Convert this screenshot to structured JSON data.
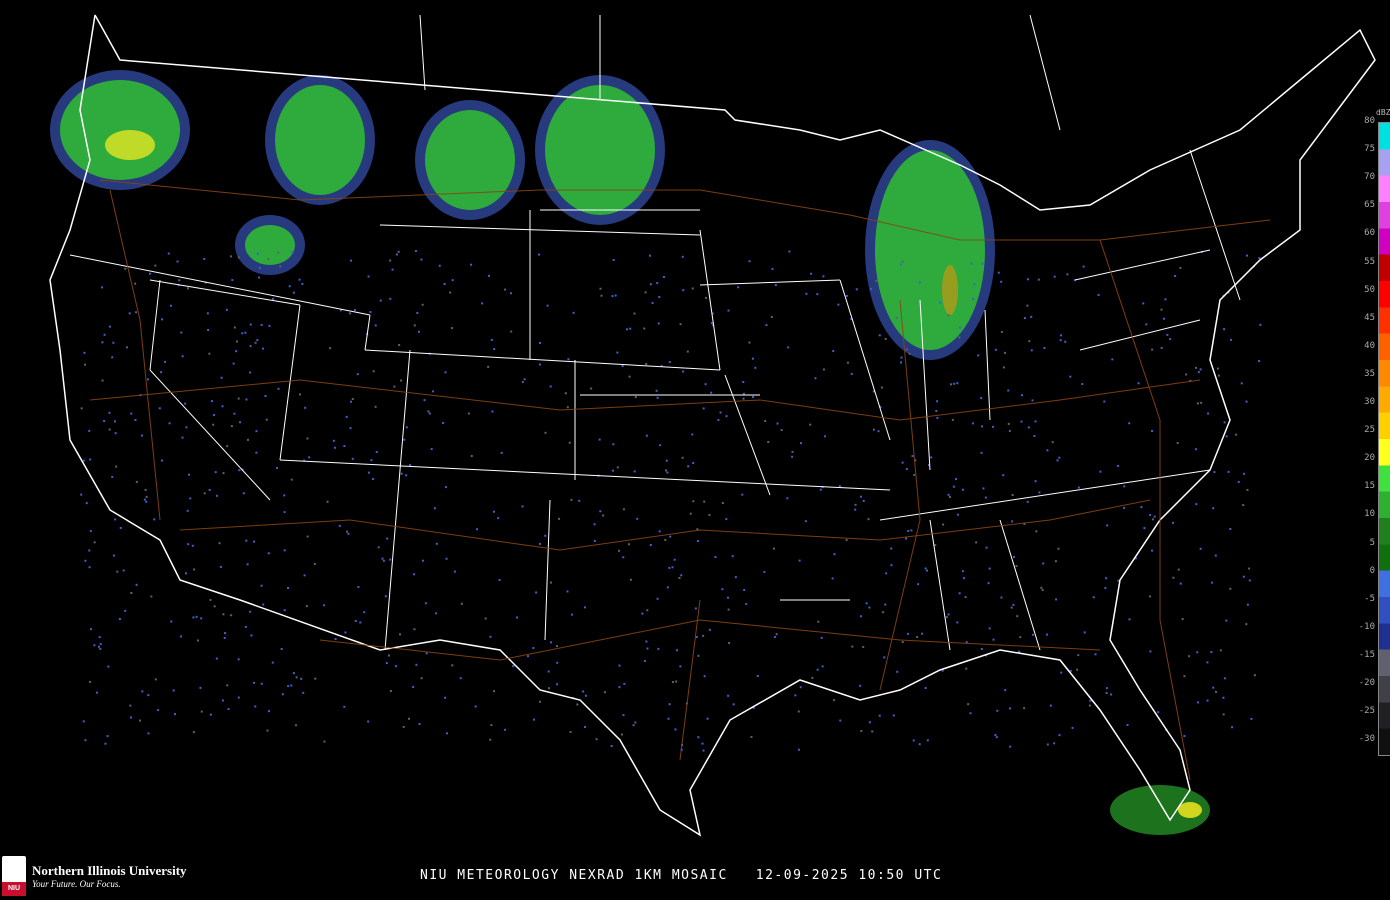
{
  "title": "NIU METEOROLOGY NEXRAD 1KM MOSAIC   12-09-2025 10:50 UTC",
  "logo": {
    "name": "Northern Illinois University",
    "tagline": "Your Future. Our Focus.",
    "badge": "NIU"
  },
  "legend": {
    "unit": "dBZ",
    "ticks": [
      "80",
      "75",
      "70",
      "65",
      "60",
      "55",
      "50",
      "45",
      "40",
      "35",
      "30",
      "25",
      "20",
      "15",
      "10",
      "5",
      "0",
      "-5",
      "-10",
      "-15",
      "-20",
      "-25",
      "-30"
    ],
    "colors": [
      "#00e0e0",
      "#a8a0f0",
      "#ff80ff",
      "#e040e0",
      "#d000c0",
      "#c00000",
      "#ff0000",
      "#ff3000",
      "#ff6000",
      "#ff8800",
      "#ffaa00",
      "#ffd000",
      "#ffff20",
      "#40e040",
      "#30b030",
      "#208020",
      "#107010",
      "#4070e0",
      "#3050c0",
      "#203090",
      "#606070",
      "#404048",
      "#202024",
      "#101010"
    ]
  },
  "map": {
    "background": "#000000",
    "borders": "#ffffff",
    "roads": "#8b4513"
  }
}
